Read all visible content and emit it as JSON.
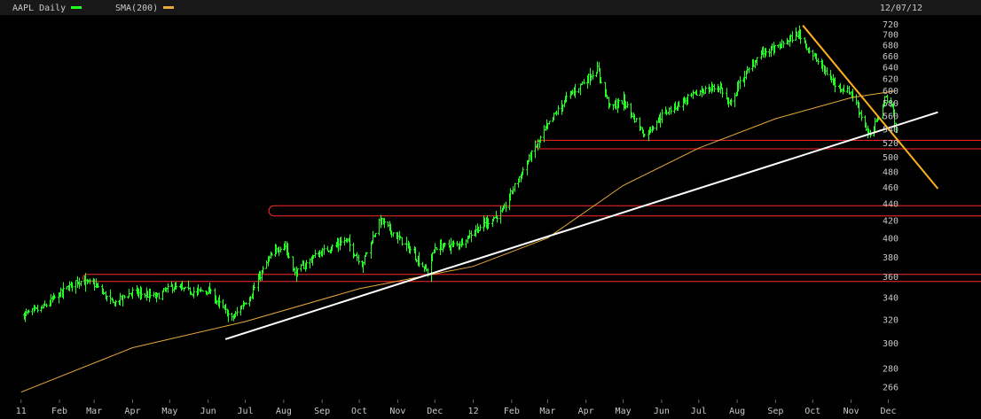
{
  "header": {
    "ticker_label": "AAPL Daily",
    "sma_label": "SMA(200)",
    "date": "12/07/12"
  },
  "colors": {
    "price": "#22ff22",
    "sma": "#e8a93c",
    "trendline_up": "#ffffff",
    "trendline_down": "#ffb020",
    "zones": "#ff2a2a",
    "text": "#c8c8c8",
    "background": "#000000"
  },
  "chart_data": {
    "type": "bar",
    "title": "AAPL Daily",
    "y_scale": "log",
    "ylim": [
      258,
      727
    ],
    "y_ticks": [
      266,
      280,
      300,
      320,
      340,
      360,
      380,
      400,
      420,
      440,
      460,
      480,
      500,
      520,
      540,
      560,
      580,
      600,
      620,
      640,
      660,
      680,
      700,
      720
    ],
    "x_ticks": [
      "11",
      "Feb",
      "Mar",
      "Apr",
      "May",
      "Jun",
      "Jul",
      "Aug",
      "Sep",
      "Oct",
      "Nov",
      "Dec",
      "12",
      "Feb",
      "Mar",
      "Apr",
      "May",
      "Jun",
      "Jul",
      "Aug",
      "Sep",
      "Oct",
      "Nov",
      "Dec"
    ],
    "x_tick_dates": [
      "2011-01-01",
      "2011-02-01",
      "2011-03-01",
      "2011-04-01",
      "2011-05-01",
      "2011-06-01",
      "2011-07-01",
      "2011-08-01",
      "2011-09-01",
      "2011-10-01",
      "2011-11-01",
      "2011-12-01",
      "2012-01-01",
      "2012-02-01",
      "2012-03-01",
      "2012-04-01",
      "2012-05-01",
      "2012-06-01",
      "2012-07-01",
      "2012-08-01",
      "2012-09-01",
      "2012-10-01",
      "2012-11-01",
      "2012-12-01"
    ],
    "series": [
      {
        "name": "AAPL Daily",
        "kind": "ohlc",
        "points": [
          [
            "2011-01-03",
            324
          ],
          [
            "2011-01-18",
            330
          ],
          [
            "2011-02-01",
            343
          ],
          [
            "2011-02-15",
            356
          ],
          [
            "2011-03-01",
            352
          ],
          [
            "2011-03-16",
            334
          ],
          [
            "2011-04-01",
            345
          ],
          [
            "2011-04-20",
            340
          ],
          [
            "2011-05-02",
            350
          ],
          [
            "2011-05-18",
            345
          ],
          [
            "2011-06-01",
            346
          ],
          [
            "2011-06-20",
            320
          ],
          [
            "2011-07-05",
            342
          ],
          [
            "2011-07-20",
            378
          ],
          [
            "2011-08-01",
            395
          ],
          [
            "2011-08-10",
            362
          ],
          [
            "2011-08-25",
            380
          ],
          [
            "2011-09-01",
            385
          ],
          [
            "2011-09-20",
            398
          ],
          [
            "2011-10-03",
            372
          ],
          [
            "2011-10-18",
            420
          ],
          [
            "2011-11-01",
            400
          ],
          [
            "2011-11-10",
            389
          ],
          [
            "2011-11-25",
            364
          ],
          [
            "2011-12-01",
            390
          ],
          [
            "2011-12-20",
            393
          ],
          [
            "2012-01-03",
            410
          ],
          [
            "2012-01-25",
            430
          ],
          [
            "2012-02-01",
            455
          ],
          [
            "2012-02-15",
            497
          ],
          [
            "2012-03-01",
            545
          ],
          [
            "2012-03-15",
            585
          ],
          [
            "2012-04-01",
            618
          ],
          [
            "2012-04-10",
            636
          ],
          [
            "2012-04-20",
            572
          ],
          [
            "2012-05-01",
            583
          ],
          [
            "2012-05-18",
            530
          ],
          [
            "2012-06-01",
            560
          ],
          [
            "2012-06-20",
            585
          ],
          [
            "2012-07-03",
            599
          ],
          [
            "2012-07-18",
            606
          ],
          [
            "2012-07-26",
            574
          ],
          [
            "2012-08-01",
            606
          ],
          [
            "2012-08-20",
            665
          ],
          [
            "2012-09-03",
            675
          ],
          [
            "2012-09-19",
            702
          ],
          [
            "2012-10-01",
            660
          ],
          [
            "2012-10-19",
            609
          ],
          [
            "2012-11-01",
            596
          ],
          [
            "2012-11-16",
            527
          ],
          [
            "2012-11-29",
            589
          ],
          [
            "2012-12-04",
            575
          ],
          [
            "2012-12-07",
            533
          ]
        ]
      },
      {
        "name": "SMA(200)",
        "kind": "line",
        "points": [
          [
            "2011-01-01",
            262
          ],
          [
            "2011-04-01",
            296
          ],
          [
            "2011-07-01",
            318
          ],
          [
            "2011-10-01",
            348
          ],
          [
            "2012-01-01",
            370
          ],
          [
            "2012-03-01",
            400
          ],
          [
            "2012-05-01",
            462
          ],
          [
            "2012-07-01",
            512
          ],
          [
            "2012-09-01",
            555
          ],
          [
            "2012-11-01",
            588
          ],
          [
            "2012-12-07",
            599
          ]
        ]
      }
    ],
    "trendlines": [
      {
        "points": [
          [
            "2011-06-15",
            303
          ],
          [
            "2013-01-10",
            565
          ]
        ]
      },
      {
        "points": [
          [
            "2012-09-23",
            717
          ],
          [
            "2013-01-10",
            458
          ]
        ]
      }
    ],
    "zones": [
      {
        "from": "2011-02-20",
        "low": 355,
        "high": 362
      },
      {
        "from": "2011-07-20",
        "low": 425,
        "high": 437
      },
      {
        "from": "2012-02-20",
        "low": 511,
        "high": 523
      }
    ]
  }
}
